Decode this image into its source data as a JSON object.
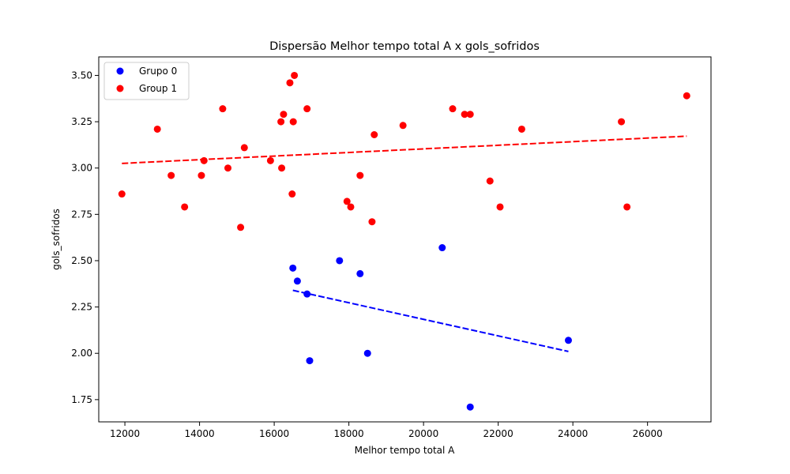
{
  "chart_data": {
    "type": "scatter",
    "title": "Dispersão Melhor tempo total A x gols_sofridos",
    "xlabel": "Melhor tempo total A",
    "ylabel": "gols_sofridos",
    "xlim": [
      11300,
      27700
    ],
    "ylim": [
      1.63,
      3.6
    ],
    "xticks": [
      12000,
      14000,
      16000,
      18000,
      20000,
      22000,
      24000,
      26000
    ],
    "yticks": [
      1.75,
      2.0,
      2.25,
      2.5,
      2.75,
      3.0,
      3.25,
      3.5
    ],
    "xtick_labels": [
      "12000",
      "14000",
      "16000",
      "18000",
      "20000",
      "22000",
      "24000",
      "26000"
    ],
    "ytick_labels": [
      "1.75",
      "2.00",
      "2.25",
      "2.50",
      "2.75",
      "3.00",
      "3.25",
      "3.50"
    ],
    "grid": false,
    "legend_position": "top-left",
    "series": [
      {
        "name": "Grupo 0",
        "color": "#0000ff",
        "points": [
          [
            16500,
            2.46
          ],
          [
            16620,
            2.39
          ],
          [
            16880,
            2.32
          ],
          [
            16950,
            1.96
          ],
          [
            17750,
            2.5
          ],
          [
            18300,
            2.43
          ],
          [
            18500,
            2.0
          ],
          [
            20500,
            2.57
          ],
          [
            21250,
            1.71
          ],
          [
            23880,
            2.07
          ]
        ],
        "trend": {
          "x": [
            16500,
            23880
          ],
          "y": [
            2.34,
            2.01
          ]
        }
      },
      {
        "name": "Group 1",
        "color": "#ff0000",
        "points": [
          [
            11920,
            2.86
          ],
          [
            12870,
            3.21
          ],
          [
            13240,
            2.96
          ],
          [
            13600,
            2.79
          ],
          [
            14050,
            2.96
          ],
          [
            14120,
            3.04
          ],
          [
            14620,
            3.32
          ],
          [
            14760,
            3.0
          ],
          [
            15100,
            2.68
          ],
          [
            15200,
            3.11
          ],
          [
            15900,
            3.04
          ],
          [
            16180,
            3.25
          ],
          [
            16200,
            3.0
          ],
          [
            16250,
            3.29
          ],
          [
            16420,
            3.46
          ],
          [
            16480,
            2.86
          ],
          [
            16510,
            3.25
          ],
          [
            16540,
            3.5
          ],
          [
            16880,
            3.32
          ],
          [
            17950,
            2.82
          ],
          [
            18050,
            2.79
          ],
          [
            18300,
            2.96
          ],
          [
            18620,
            2.71
          ],
          [
            18680,
            3.18
          ],
          [
            19450,
            3.23
          ],
          [
            20780,
            3.32
          ],
          [
            21100,
            3.29
          ],
          [
            21250,
            3.29
          ],
          [
            21780,
            2.93
          ],
          [
            22050,
            2.79
          ],
          [
            22630,
            3.21
          ],
          [
            25300,
            3.25
          ],
          [
            25450,
            2.79
          ],
          [
            27050,
            3.39
          ]
        ],
        "trend": {
          "x": [
            11920,
            27050
          ],
          "y": [
            3.025,
            3.172
          ]
        }
      }
    ]
  }
}
